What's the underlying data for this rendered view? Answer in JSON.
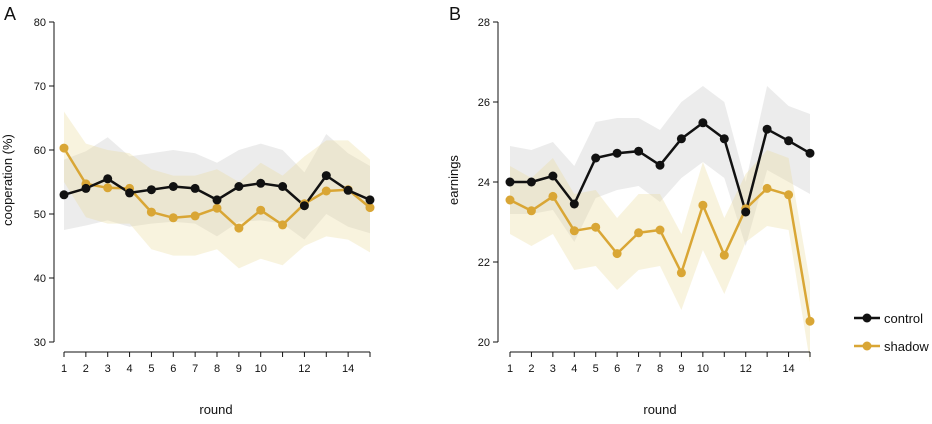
{
  "chart_data": [
    {
      "type": "line",
      "panel_label": "A",
      "xlabel": "round",
      "ylabel": "cooperation (%)",
      "xlim": [
        1,
        15
      ],
      "ylim": [
        30,
        80
      ],
      "x_ticks": [
        1,
        2,
        3,
        4,
        5,
        6,
        7,
        8,
        9,
        10,
        12,
        14
      ],
      "y_ticks": [
        30,
        40,
        50,
        60,
        70,
        80
      ],
      "grid": false,
      "x": [
        1,
        2,
        3,
        4,
        5,
        6,
        7,
        8,
        9,
        10,
        11,
        12,
        13,
        14,
        15
      ],
      "series": [
        {
          "name": "control",
          "color": "#111111",
          "band_color": "#d4d4d4",
          "values": [
            53,
            54,
            55.5,
            53.3,
            53.8,
            54.3,
            54,
            52.2,
            54.3,
            54.8,
            54.3,
            51.3,
            56,
            53.7,
            52.2
          ],
          "lower": [
            47.5,
            48.2,
            49,
            48,
            48.5,
            48.8,
            48.5,
            46.5,
            48.8,
            49,
            48.5,
            46,
            50,
            48,
            47
          ],
          "upper": [
            58.5,
            59.8,
            62,
            59,
            59.5,
            60,
            59.5,
            58,
            60,
            61,
            60,
            56.5,
            62.5,
            59.5,
            57.5
          ]
        },
        {
          "name": "shadow",
          "color": "#d9a635",
          "band_color": "#ecdca0",
          "values": [
            60.3,
            54.7,
            54.1,
            54,
            50.3,
            49.4,
            49.7,
            50.9,
            47.8,
            50.6,
            48.3,
            51.6,
            53.6,
            53.8,
            51
          ],
          "lower": [
            55,
            49.5,
            48.5,
            48.5,
            44.5,
            43.5,
            43.5,
            44.5,
            41.5,
            43,
            42,
            45,
            46.5,
            46,
            44
          ],
          "upper": [
            66,
            61,
            60,
            59.5,
            57,
            56,
            56,
            57,
            55,
            58,
            56,
            59,
            61.5,
            61.5,
            58.5
          ]
        }
      ]
    },
    {
      "type": "line",
      "panel_label": "B",
      "xlabel": "round",
      "ylabel": "earnings",
      "xlim": [
        1,
        15
      ],
      "ylim": [
        20,
        28
      ],
      "x_ticks": [
        1,
        2,
        3,
        4,
        5,
        6,
        7,
        8,
        9,
        10,
        12,
        14
      ],
      "y_ticks": [
        20,
        22,
        24,
        26,
        28
      ],
      "grid": false,
      "legend_position": "right",
      "x": [
        1,
        2,
        3,
        4,
        5,
        6,
        7,
        8,
        9,
        10,
        11,
        12,
        13,
        14,
        15
      ],
      "series": [
        {
          "name": "control",
          "color": "#111111",
          "band_color": "#d4d4d4",
          "values": [
            24,
            24,
            24.15,
            23.45,
            24.6,
            24.72,
            24.77,
            24.42,
            25.08,
            25.48,
            25.08,
            23.25,
            25.32,
            25.03,
            24.72
          ],
          "lower": [
            23.2,
            23.2,
            23.3,
            22.5,
            23.6,
            23.8,
            23.9,
            23.5,
            24.1,
            24.5,
            24.1,
            22.4,
            24.3,
            24,
            23.7
          ],
          "upper": [
            24.9,
            24.8,
            25,
            24.4,
            25.5,
            25.6,
            25.6,
            25.3,
            26,
            26.4,
            26,
            24,
            26.4,
            25.9,
            25.7
          ]
        },
        {
          "name": "shadow",
          "color": "#d9a635",
          "band_color": "#ecdca0",
          "values": [
            23.55,
            23.28,
            23.64,
            22.78,
            22.87,
            22.21,
            22.73,
            22.8,
            21.73,
            23.42,
            22.17,
            23.33,
            23.84,
            23.68,
            20.52
          ],
          "lower": [
            22.7,
            22.4,
            22.7,
            21.8,
            21.9,
            21.3,
            21.8,
            21.9,
            20.8,
            22.3,
            21.2,
            22.5,
            22.9,
            22.8,
            19.5
          ],
          "upper": [
            24.4,
            24.1,
            24.6,
            23.7,
            23.8,
            23.1,
            23.7,
            23.7,
            22.7,
            24.5,
            23.1,
            24.2,
            24.8,
            24.6,
            21.5
          ]
        }
      ]
    }
  ]
}
